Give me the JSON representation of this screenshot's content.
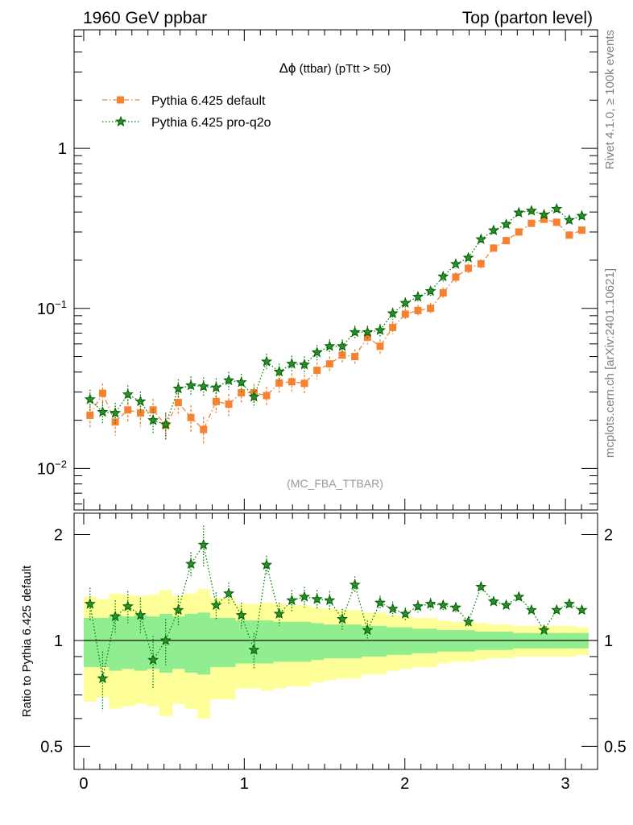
{
  "header": {
    "left": "1960 GeV ppbar",
    "right": "Top (parton level)"
  },
  "side_labels": {
    "rivet": "Rivet 4.1.0, ≥ 100k events",
    "mcplots": "mcplots.cern.ch [arXiv:2401.10621]"
  },
  "chart_data": {
    "type": "line",
    "title": "Δϕ (ttbar) (pTtt > 50)",
    "title_parts": {
      "delta": "Δϕ",
      "rest": " (ttbar) (pTtt > 50)"
    },
    "analysis_tag": "(MC_FBA_TTBAR)",
    "xlim": [
      -0.06,
      3.2
    ],
    "xticks": [
      0,
      1,
      2,
      3
    ],
    "xtick_labels": [
      "0",
      "1",
      "2",
      "3"
    ],
    "main": {
      "yscale": "log",
      "ylim": [
        0.0055,
        5.5
      ],
      "yticks": [
        0.01,
        0.1,
        1
      ],
      "ytick_labels": {
        "e-2": {
          "base": "10",
          "exp": "−2"
        },
        "e-1": {
          "base": "10",
          "exp": "−1"
        },
        "e0": "1"
      }
    },
    "ratio": {
      "ylabel": "Ratio to Pythia 6.425 default",
      "ylim": [
        0.43,
        2.3
      ],
      "yticks": [
        0.5,
        1,
        2
      ],
      "ytick_labels": [
        "0.5",
        "1",
        "2"
      ]
    },
    "legend_position": "top-left",
    "x": [
      0.0393,
      0.1178,
      0.1963,
      0.2749,
      0.3534,
      0.432,
      0.5105,
      0.589,
      0.6676,
      0.7461,
      0.8247,
      0.9032,
      0.9817,
      1.0603,
      1.1388,
      1.2174,
      1.2959,
      1.3744,
      1.453,
      1.5315,
      1.6101,
      1.6886,
      1.7671,
      1.8457,
      1.9242,
      2.0028,
      2.0813,
      2.1598,
      2.2384,
      2.3169,
      2.3955,
      2.474,
      2.5525,
      2.6311,
      2.7096,
      2.7882,
      2.8667,
      2.9452,
      3.0238,
      3.1023
    ],
    "series": [
      {
        "name": "Pythia 6.425 default",
        "color": "#f58231",
        "marker": "square",
        "line": "dash-dot",
        "values": [
          0.0215,
          0.0295,
          0.0195,
          0.0232,
          0.0222,
          0.0232,
          0.0186,
          0.0258,
          0.0208,
          0.0175,
          0.0262,
          0.0252,
          0.0297,
          0.0297,
          0.0285,
          0.0342,
          0.0348,
          0.034,
          0.041,
          0.045,
          0.051,
          0.05,
          0.066,
          0.058,
          0.076,
          0.092,
          0.097,
          0.1,
          0.125,
          0.157,
          0.178,
          0.19,
          0.238,
          0.265,
          0.3,
          0.34,
          0.36,
          0.345,
          0.287,
          0.308
        ],
        "errors": [
          0.0035,
          0.0045,
          0.0035,
          0.004,
          0.004,
          0.004,
          0.0035,
          0.0045,
          0.004,
          0.0035,
          0.004,
          0.004,
          0.004,
          0.004,
          0.004,
          0.0045,
          0.0045,
          0.0045,
          0.005,
          0.005,
          0.0055,
          0.0055,
          0.0065,
          0.006,
          0.007,
          0.008,
          0.008,
          0.0085,
          0.01,
          0.011,
          0.012,
          0.0125,
          0.014,
          0.015,
          0.016,
          0.017,
          0.017,
          0.017,
          0.015,
          0.016
        ]
      },
      {
        "name": "Pythia 6.425 pro-q2o",
        "color": "#008000",
        "marker": "star",
        "line": "dotted",
        "values": [
          0.027,
          0.0225,
          0.0222,
          0.029,
          0.0262,
          0.02,
          0.0188,
          0.0315,
          0.033,
          0.0325,
          0.032,
          0.0355,
          0.0345,
          0.028,
          0.0465,
          0.0402,
          0.045,
          0.0445,
          0.053,
          0.058,
          0.058,
          0.071,
          0.071,
          0.073,
          0.093,
          0.108,
          0.118,
          0.128,
          0.158,
          0.189,
          0.207,
          0.27,
          0.307,
          0.335,
          0.396,
          0.407,
          0.385,
          0.418,
          0.356,
          0.378
        ],
        "errors": [
          0.004,
          0.0035,
          0.0035,
          0.004,
          0.004,
          0.0035,
          0.0035,
          0.0045,
          0.0045,
          0.0045,
          0.0045,
          0.0045,
          0.0045,
          0.004,
          0.0055,
          0.005,
          0.0055,
          0.0055,
          0.006,
          0.006,
          0.006,
          0.007,
          0.007,
          0.007,
          0.008,
          0.0085,
          0.009,
          0.0095,
          0.011,
          0.012,
          0.013,
          0.015,
          0.016,
          0.017,
          0.018,
          0.019,
          0.018,
          0.019,
          0.017,
          0.018
        ]
      }
    ],
    "ratio_bands": {
      "green_color": "#90ee90",
      "yellow_color": "#ffff99",
      "inner": [
        0.16,
        0.16,
        0.18,
        0.17,
        0.18,
        0.17,
        0.19,
        0.17,
        0.19,
        0.2,
        0.16,
        0.16,
        0.14,
        0.14,
        0.14,
        0.13,
        0.13,
        0.13,
        0.12,
        0.11,
        0.11,
        0.11,
        0.1,
        0.1,
        0.09,
        0.09,
        0.08,
        0.08,
        0.07,
        0.07,
        0.07,
        0.06,
        0.06,
        0.06,
        0.05,
        0.05,
        0.05,
        0.05,
        0.05,
        0.05
      ],
      "outer": [
        0.33,
        0.31,
        0.36,
        0.35,
        0.34,
        0.35,
        0.39,
        0.34,
        0.36,
        0.4,
        0.32,
        0.32,
        0.27,
        0.27,
        0.28,
        0.27,
        0.26,
        0.26,
        0.24,
        0.23,
        0.22,
        0.22,
        0.2,
        0.2,
        0.18,
        0.17,
        0.16,
        0.16,
        0.14,
        0.13,
        0.13,
        0.12,
        0.11,
        0.11,
        0.1,
        0.1,
        0.1,
        0.1,
        0.1,
        0.09
      ]
    },
    "ratio_values": {
      "name": "Pythia 6.425 pro-q2o / Pythia 6.425 default",
      "values": [
        1.27,
        0.78,
        1.17,
        1.25,
        1.18,
        0.88,
        1.0,
        1.22,
        1.65,
        1.87,
        1.26,
        1.36,
        1.18,
        0.94,
        1.64,
        1.19,
        1.3,
        1.33,
        1.31,
        1.3,
        1.15,
        1.44,
        1.07,
        1.28,
        1.23,
        1.19,
        1.25,
        1.27,
        1.26,
        1.24,
        1.13,
        1.42,
        1.29,
        1.26,
        1.33,
        1.22,
        1.07,
        1.22,
        1.27,
        1.22
      ],
      "errors": [
        0.14,
        0.15,
        0.13,
        0.13,
        0.14,
        0.15,
        0.15,
        0.12,
        0.13,
        0.25,
        0.11,
        0.1,
        0.1,
        0.11,
        0.1,
        0.09,
        0.09,
        0.09,
        0.08,
        0.08,
        0.08,
        0.08,
        0.07,
        0.06,
        0.06,
        0.05,
        0.05,
        0.05,
        0.04,
        0.04,
        0.04,
        0.04,
        0.03,
        0.03,
        0.03,
        0.03,
        0.03,
        0.03,
        0.03,
        0.03
      ]
    }
  }
}
